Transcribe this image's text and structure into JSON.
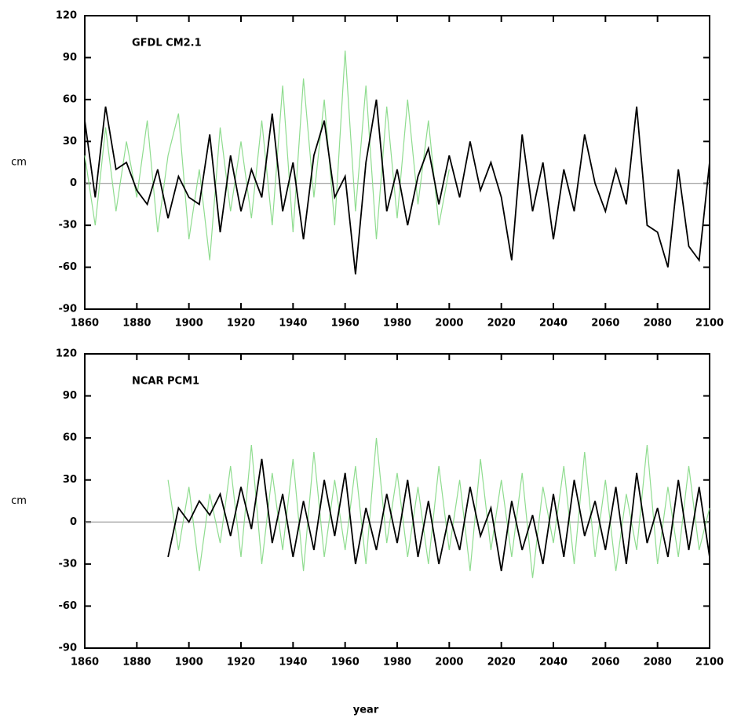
{
  "chart_data": [
    {
      "type": "line",
      "title": "GFDL CM2.1",
      "y_label": "cm",
      "x": [
        1860,
        1864,
        1868,
        1872,
        1876,
        1880,
        1884,
        1888,
        1892,
        1896,
        1900,
        1904,
        1908,
        1912,
        1916,
        1920,
        1924,
        1928,
        1932,
        1936,
        1940,
        1944,
        1948,
        1952,
        1956,
        1960,
        1964,
        1968,
        1972,
        1976,
        1980,
        1984,
        1988,
        1992,
        1996,
        2000,
        2004,
        2008,
        2012,
        2016,
        2020,
        2024,
        2028,
        2032,
        2036,
        2040,
        2044,
        2048,
        2052,
        2056,
        2060,
        2064,
        2068,
        2072,
        2076,
        2080,
        2084,
        2088,
        2092,
        2096,
        2100
      ],
      "xlim": [
        1860,
        2100
      ],
      "xticks": [
        1860,
        1880,
        1900,
        1920,
        1940,
        1960,
        1980,
        2000,
        2020,
        2040,
        2060,
        2080,
        2100
      ],
      "ylim": [
        -90,
        120
      ],
      "yticks": [
        -90,
        -60,
        -30,
        0,
        30,
        60,
        90,
        120
      ],
      "zero_line": true,
      "series": [
        {
          "color": "#8fdc8f",
          "values": [
            20,
            -30,
            40,
            -20,
            30,
            -10,
            45,
            -35,
            20,
            50,
            -40,
            10,
            -55,
            40,
            -20,
            30,
            -25,
            45,
            -30,
            70,
            -35,
            75,
            -10,
            60,
            -30,
            95,
            -20,
            70,
            -40,
            55,
            -25,
            60,
            -15,
            45,
            -30,
            10,
            null,
            null,
            null,
            null,
            null,
            null,
            null,
            null,
            null,
            null,
            null,
            null,
            null,
            null,
            null,
            null,
            null,
            null,
            null,
            null,
            null,
            null,
            null,
            null,
            null
          ]
        },
        {
          "color": "#000000",
          "values": [
            45,
            -10,
            55,
            10,
            15,
            -5,
            -15,
            10,
            -25,
            5,
            -10,
            -15,
            35,
            -35,
            20,
            -20,
            10,
            -10,
            50,
            -20,
            15,
            -40,
            20,
            45,
            -10,
            5,
            -65,
            15,
            60,
            -20,
            10,
            -30,
            5,
            25,
            -15,
            20,
            -10,
            30,
            -5,
            15,
            -10,
            -55,
            35,
            -20,
            15,
            -40,
            10,
            -20,
            35,
            0,
            -20,
            10,
            -15,
            55,
            -30,
            -35,
            -60,
            10,
            -45,
            -55,
            15
          ]
        }
      ]
    },
    {
      "type": "line",
      "title": "NCAR PCM1",
      "y_label": "cm",
      "x_label": "year",
      "x": [
        1860,
        1864,
        1868,
        1872,
        1876,
        1880,
        1884,
        1888,
        1892,
        1896,
        1900,
        1904,
        1908,
        1912,
        1916,
        1920,
        1924,
        1928,
        1932,
        1936,
        1940,
        1944,
        1948,
        1952,
        1956,
        1960,
        1964,
        1968,
        1972,
        1976,
        1980,
        1984,
        1988,
        1992,
        1996,
        2000,
        2004,
        2008,
        2012,
        2016,
        2020,
        2024,
        2028,
        2032,
        2036,
        2040,
        2044,
        2048,
        2052,
        2056,
        2060,
        2064,
        2068,
        2072,
        2076,
        2080,
        2084,
        2088,
        2092,
        2096,
        2100
      ],
      "xlim": [
        1860,
        2100
      ],
      "xticks": [
        1860,
        1880,
        1900,
        1920,
        1940,
        1960,
        1980,
        2000,
        2020,
        2040,
        2060,
        2080,
        2100
      ],
      "ylim": [
        -90,
        120
      ],
      "yticks": [
        -90,
        -60,
        -30,
        0,
        30,
        60,
        90,
        120
      ],
      "zero_line": true,
      "series": [
        {
          "color": "#8fdc8f",
          "values": [
            null,
            null,
            null,
            null,
            null,
            null,
            null,
            null,
            30,
            -20,
            25,
            -35,
            20,
            -15,
            40,
            -25,
            55,
            -30,
            35,
            -20,
            45,
            -35,
            50,
            -25,
            30,
            -20,
            40,
            -30,
            60,
            -15,
            35,
            -25,
            25,
            -30,
            40,
            -20,
            30,
            -35,
            45,
            -20,
            30,
            -25,
            35,
            -40,
            25,
            -15,
            40,
            -30,
            50,
            -25,
            30,
            -35,
            20,
            -20,
            55,
            -30,
            25,
            -25,
            40,
            -20,
            10
          ]
        },
        {
          "color": "#000000",
          "values": [
            null,
            null,
            null,
            null,
            null,
            null,
            null,
            null,
            -25,
            10,
            0,
            15,
            5,
            20,
            -10,
            25,
            -5,
            45,
            -15,
            20,
            -25,
            15,
            -20,
            30,
            -10,
            35,
            -30,
            10,
            -20,
            20,
            -15,
            30,
            -25,
            15,
            -30,
            5,
            -20,
            25,
            -10,
            10,
            -35,
            15,
            -20,
            5,
            -30,
            20,
            -25,
            30,
            -10,
            15,
            -20,
            25,
            -30,
            35,
            -15,
            10,
            -25,
            30,
            -20,
            25,
            -25
          ]
        }
      ]
    }
  ]
}
